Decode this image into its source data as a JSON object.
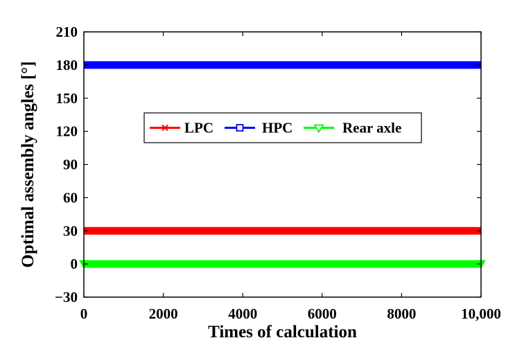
{
  "chart_data": {
    "type": "line",
    "title": "",
    "xlabel": "Times of calculation",
    "ylabel": "Optimal assembly angles [°]",
    "xlim": [
      0,
      10000
    ],
    "ylim": [
      -30,
      210
    ],
    "xticks": [
      0,
      2000,
      4000,
      6000,
      8000,
      10000
    ],
    "xtick_labels": [
      "0",
      "2000",
      "4000",
      "6000",
      "8000",
      "10,000"
    ],
    "yticks": [
      -30,
      0,
      30,
      60,
      90,
      120,
      150,
      180,
      210
    ],
    "ytick_labels": [
      "−30",
      "0",
      "30",
      "60",
      "90",
      "120",
      "150",
      "180",
      "210"
    ],
    "grid": false,
    "legend_position": "center",
    "series": [
      {
        "name": "LPC",
        "color": "#ff0000",
        "marker": "x",
        "x": [
          0,
          10000
        ],
        "y": [
          30,
          30
        ]
      },
      {
        "name": "HPC",
        "color": "#0000ff",
        "marker": "square",
        "x": [
          0,
          10000
        ],
        "y": [
          180,
          180
        ]
      },
      {
        "name": "Rear axle",
        "color": "#00ff00",
        "marker": "triangle-down",
        "x": [
          0,
          10000
        ],
        "y": [
          0,
          0
        ]
      }
    ]
  }
}
